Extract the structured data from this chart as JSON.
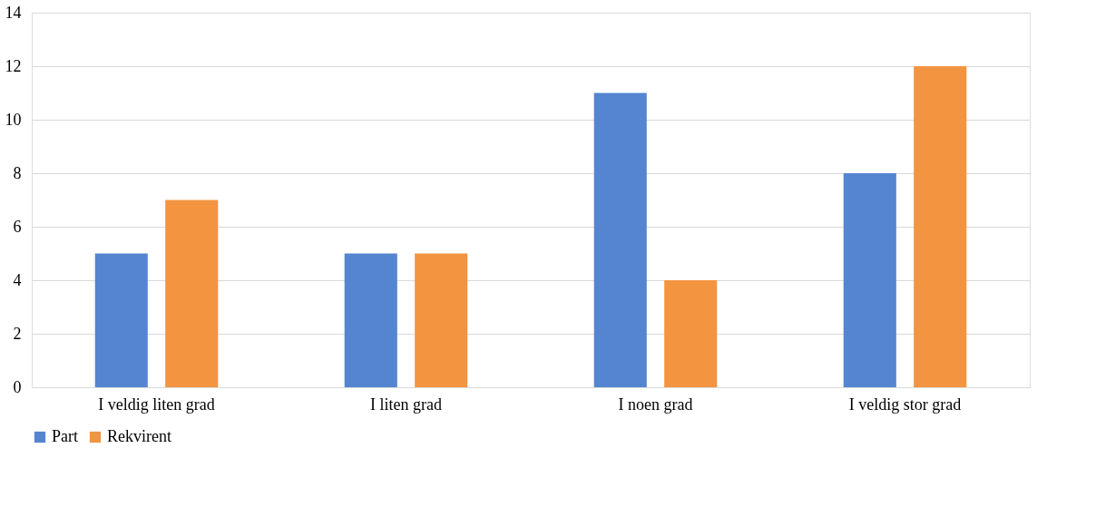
{
  "chart_data": {
    "type": "bar",
    "categories": [
      "I veldig liten grad",
      "I liten grad",
      "I noen grad",
      "I veldig stor grad"
    ],
    "series": [
      {
        "name": "Part",
        "color": "#5585d0",
        "values": [
          5,
          5,
          11,
          8
        ]
      },
      {
        "name": "Rekvirent",
        "color": "#f29440",
        "values": [
          7,
          5,
          4,
          12
        ]
      }
    ],
    "ylim": [
      0,
      14
    ],
    "yticks": [
      0,
      2,
      4,
      6,
      8,
      10,
      12,
      14
    ],
    "grid": "y",
    "legend": "bottom"
  }
}
